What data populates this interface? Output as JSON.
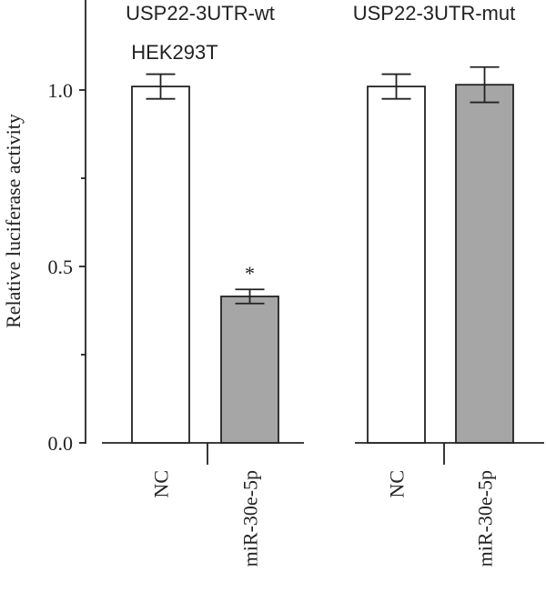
{
  "chart_data": {
    "type": "bar",
    "ylabel": "Relative luciferase activity",
    "ylim": [
      0,
      1.2
    ],
    "yticks": [
      0.0,
      0.5,
      1.0
    ],
    "ytick_labels": [
      "0.0",
      "0.5",
      "1.0"
    ],
    "minor_yticks": [
      0.25,
      0.75
    ],
    "group_labels": [
      "USP22-3UTR-wt",
      "USP22-3UTR-mut"
    ],
    "annotation": "HEK293T",
    "categories": [
      "NC",
      "miR-30e-5p",
      "NC",
      "miR-30e-5p"
    ],
    "values": [
      1.01,
      0.415,
      1.01,
      1.015
    ],
    "errors": [
      0.035,
      0.02,
      0.035,
      0.05
    ],
    "significance": [
      "",
      "*",
      "",
      ""
    ],
    "bar_colors": [
      "#ffffff",
      "#a6a6a6",
      "#ffffff",
      "#a6a6a6"
    ],
    "grid": false
  }
}
